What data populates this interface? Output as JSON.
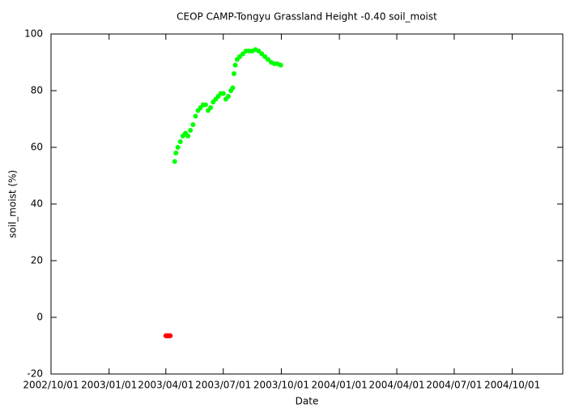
{
  "chart_data": {
    "type": "scatter",
    "title": "CEOP CAMP-Tongyu Grassland Height -0.40 soil_moist",
    "x_label": "Date",
    "y_label": "soil_moist (%)",
    "xlim": [
      "2002/10/01",
      "2004/12/20"
    ],
    "xticks": [
      "2002/10/01",
      "2003/01/01",
      "2003/04/01",
      "2003/07/01",
      "2003/10/01",
      "2004/01/01",
      "2004/04/01",
      "2004/07/01",
      "2004/10/01"
    ],
    "ylim": [
      -20,
      100
    ],
    "yticks": [
      -20,
      0,
      20,
      40,
      60,
      80,
      100
    ],
    "series": [
      {
        "color": "#ff0000",
        "x": [
          "2003/04/01",
          "2003/04/02",
          "2003/04/03",
          "2003/04/04",
          "2003/04/05",
          "2003/04/06",
          "2003/04/07",
          "2003/04/08"
        ],
        "values": [
          -6.5,
          -6.5,
          -6.5,
          -6.5,
          -6.5,
          -6.5,
          -6.5,
          -6.5
        ]
      },
      {
        "color": "#00ff00",
        "x": [
          "2003/04/15",
          "2003/04/17",
          "2003/04/20",
          "2003/04/24",
          "2003/04/28",
          "2003/05/02",
          "2003/05/06",
          "2003/05/10",
          "2003/05/14",
          "2003/05/18",
          "2003/05/22",
          "2003/05/26",
          "2003/05/30",
          "2003/06/03",
          "2003/06/07",
          "2003/06/11",
          "2003/06/15",
          "2003/06/19",
          "2003/06/23",
          "2003/06/27",
          "2003/07/01",
          "2003/07/05",
          "2003/07/09",
          "2003/07/13",
          "2003/07/16",
          "2003/07/18",
          "2003/07/20",
          "2003/07/23",
          "2003/07/27",
          "2003/08/01",
          "2003/08/06",
          "2003/08/11",
          "2003/08/16",
          "2003/08/21",
          "2003/08/26",
          "2003/08/31",
          "2003/09/05",
          "2003/09/10",
          "2003/09/15",
          "2003/09/20",
          "2003/09/25",
          "2003/09/30"
        ],
        "values": [
          55,
          58,
          60,
          62,
          64,
          65,
          64,
          66,
          68,
          71,
          73,
          74,
          75,
          75,
          73,
          74,
          76,
          77,
          78,
          79,
          79,
          77,
          78,
          80,
          81,
          86,
          89,
          91,
          92,
          93,
          94,
          94,
          94,
          94.5,
          94,
          93,
          92,
          91,
          90,
          89.5,
          89.5,
          89
        ]
      }
    ]
  }
}
